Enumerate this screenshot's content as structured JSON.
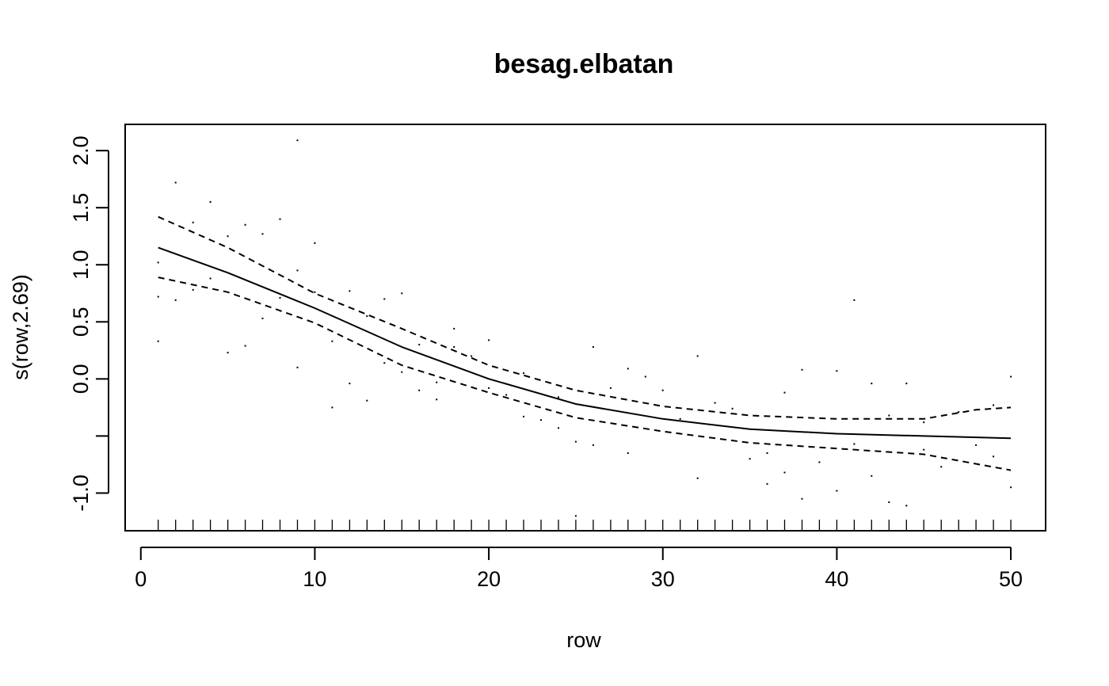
{
  "chart_data": {
    "type": "line",
    "title": "besag.elbatan",
    "xlabel": "row",
    "ylabel": "s(row,2.69)",
    "xlim": [
      -0.9,
      52.0
    ],
    "ylim": [
      -1.33,
      2.23
    ],
    "x_ticks": [
      0,
      10,
      20,
      30,
      40,
      50
    ],
    "x_tick_labels": [
      "0",
      "10",
      "20",
      "30",
      "40",
      "50"
    ],
    "y_ticks": [
      -1.0,
      -0.5,
      0.0,
      0.5,
      1.0,
      1.5,
      2.0
    ],
    "y_tick_labels": [
      "-1.0",
      "",
      "0.0",
      "0.5",
      "1.0",
      "1.5",
      "2.0"
    ],
    "grid": false,
    "series": [
      {
        "style": "solid",
        "x": [
          1,
          5,
          10,
          15,
          20,
          25,
          30,
          35,
          40,
          45,
          50
        ],
        "y": [
          1.15,
          0.93,
          0.62,
          0.28,
          0.0,
          -0.22,
          -0.35,
          -0.44,
          -0.48,
          -0.5,
          -0.52
        ]
      },
      {
        "style": "dashed",
        "x": [
          1,
          5,
          10,
          15,
          20,
          25,
          30,
          35,
          40,
          45,
          48,
          50
        ],
        "y": [
          1.42,
          1.15,
          0.75,
          0.44,
          0.12,
          -0.1,
          -0.24,
          -0.32,
          -0.35,
          -0.35,
          -0.27,
          -0.25
        ]
      },
      {
        "style": "dashed",
        "x": [
          1,
          5,
          10,
          15,
          20,
          25,
          30,
          35,
          40,
          45,
          50
        ],
        "y": [
          0.89,
          0.76,
          0.49,
          0.12,
          -0.12,
          -0.34,
          -0.46,
          -0.56,
          -0.61,
          -0.66,
          -0.8
        ]
      }
    ],
    "rug_x": [
      1,
      2,
      3,
      4,
      5,
      6,
      7,
      8,
      9,
      10,
      11,
      12,
      13,
      14,
      15,
      16,
      17,
      18,
      19,
      20,
      21,
      22,
      23,
      24,
      25,
      26,
      27,
      28,
      29,
      30,
      31,
      32,
      33,
      34,
      35,
      36,
      37,
      38,
      39,
      40,
      41,
      42,
      43,
      44,
      45,
      46,
      47,
      48,
      49,
      50
    ],
    "residual_points": [
      [
        1,
        1.02
      ],
      [
        1,
        0.72
      ],
      [
        1,
        0.33
      ],
      [
        2,
        1.72
      ],
      [
        2,
        0.69
      ],
      [
        3,
        0.78
      ],
      [
        3,
        1.37
      ],
      [
        4,
        1.55
      ],
      [
        4,
        0.88
      ],
      [
        5,
        0.23
      ],
      [
        5,
        1.25
      ],
      [
        6,
        0.29
      ],
      [
        6,
        1.35
      ],
      [
        7,
        1.27
      ],
      [
        7,
        0.53
      ],
      [
        8,
        1.4
      ],
      [
        8,
        0.71
      ],
      [
        9,
        2.09
      ],
      [
        9,
        0.1
      ],
      [
        9,
        0.95
      ],
      [
        10,
        0.76
      ],
      [
        10,
        1.19
      ],
      [
        11,
        -0.25
      ],
      [
        11,
        0.33
      ],
      [
        12,
        -0.04
      ],
      [
        12,
        0.77
      ],
      [
        13,
        0.55
      ],
      [
        13,
        -0.19
      ],
      [
        14,
        0.7
      ],
      [
        14,
        0.14
      ],
      [
        15,
        0.75
      ],
      [
        15,
        0.06
      ],
      [
        16,
        0.3
      ],
      [
        16,
        -0.1
      ],
      [
        17,
        -0.03
      ],
      [
        17,
        -0.18
      ],
      [
        18,
        0.44
      ],
      [
        18,
        0.28
      ],
      [
        19,
        0.2
      ],
      [
        20,
        -0.08
      ],
      [
        20,
        0.34
      ],
      [
        21,
        -0.14
      ],
      [
        22,
        -0.33
      ],
      [
        22,
        0.05
      ],
      [
        23,
        -0.36
      ],
      [
        24,
        -0.43
      ],
      [
        24,
        -0.16
      ],
      [
        25,
        -0.55
      ],
      [
        25,
        -1.2
      ],
      [
        26,
        -0.58
      ],
      [
        26,
        0.28
      ],
      [
        27,
        -0.08
      ],
      [
        28,
        -0.65
      ],
      [
        28,
        0.09
      ],
      [
        29,
        0.02
      ],
      [
        30,
        -0.1
      ],
      [
        31,
        -0.35
      ],
      [
        32,
        -0.87
      ],
      [
        32,
        0.2
      ],
      [
        33,
        -0.21
      ],
      [
        34,
        -0.26
      ],
      [
        35,
        -0.7
      ],
      [
        36,
        -0.65
      ],
      [
        36,
        -0.92
      ],
      [
        37,
        -0.12
      ],
      [
        37,
        -0.82
      ],
      [
        38,
        -1.05
      ],
      [
        38,
        0.08
      ],
      [
        39,
        -0.73
      ],
      [
        40,
        -0.98
      ],
      [
        40,
        0.07
      ],
      [
        41,
        0.69
      ],
      [
        41,
        -0.57
      ],
      [
        42,
        -0.04
      ],
      [
        42,
        -0.85
      ],
      [
        43,
        -1.08
      ],
      [
        43,
        -0.32
      ],
      [
        44,
        -1.11
      ],
      [
        44,
        -0.04
      ],
      [
        45,
        -0.62
      ],
      [
        45,
        -0.38
      ],
      [
        46,
        -0.77
      ],
      [
        47,
        -0.29
      ],
      [
        48,
        -0.58
      ],
      [
        49,
        -0.23
      ],
      [
        49,
        -0.68
      ],
      [
        50,
        0.02
      ],
      [
        50,
        -0.95
      ]
    ]
  }
}
